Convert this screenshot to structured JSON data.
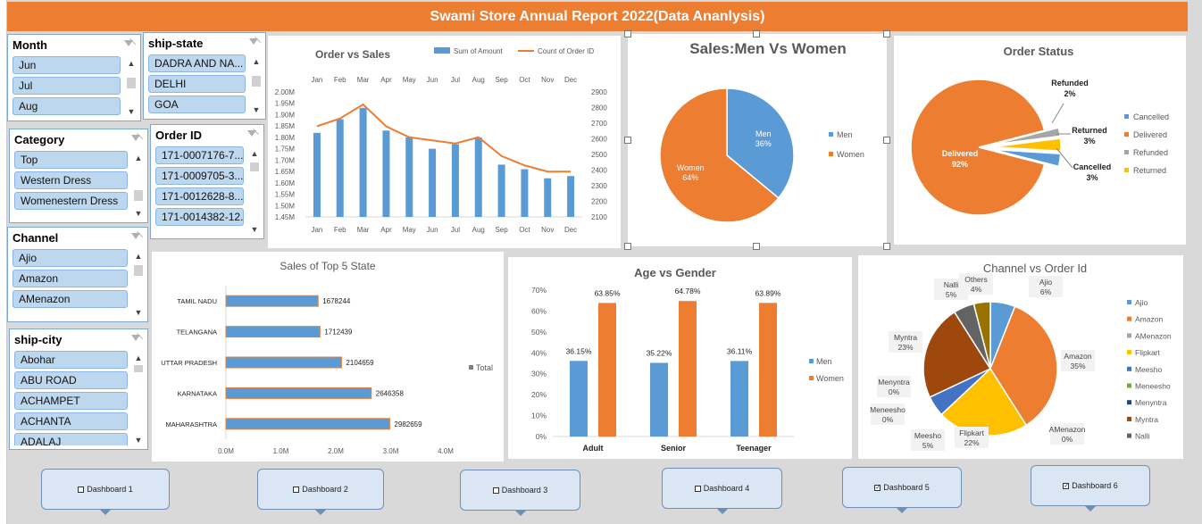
{
  "title": "Swami Store Annual Report 2022(Data Ananlysis)",
  "slicers": {
    "month": {
      "title": "Month",
      "items": [
        "Jun",
        "Jul",
        "Aug"
      ]
    },
    "ship_state": {
      "title": "ship-state",
      "items": [
        "DADRA AND NA...",
        "DELHI",
        "GOA"
      ]
    },
    "category": {
      "title": "Category",
      "items": [
        "Top",
        "Western Dress",
        "Womenestern Dress"
      ]
    },
    "order_id": {
      "title": "Order ID",
      "items": [
        "171-0007176-7...",
        "171-0009705-3...",
        "171-0012628-8...",
        "171-0014382-12..."
      ]
    },
    "channel": {
      "title": "Channel",
      "items": [
        "Ajio",
        "Amazon",
        "AMenazon"
      ]
    },
    "ship_city": {
      "title": "ship-city",
      "items": [
        "Abohar",
        "ABU ROAD",
        "ACHAMPET",
        "ACHANTA",
        "ADALAJ"
      ]
    }
  },
  "dashboards": [
    {
      "label": "Dashboard 1",
      "checked": false
    },
    {
      "label": "Dashboard  2",
      "checked": false
    },
    {
      "label": "Dashboard 3",
      "checked": false
    },
    {
      "label": "Dashboard 4",
      "checked": false
    },
    {
      "label": "Dashboard 5",
      "checked": true
    },
    {
      "label": "Dashboard 6",
      "checked": true
    }
  ],
  "colors": {
    "orange": "#ed7d31",
    "blue": "#5b9bd5",
    "gray": "#a5a5a5",
    "yellow": "#ffc000",
    "darkblue": "#4472c4",
    "green": "#70ad47",
    "navy": "#264478",
    "brown": "#9e480e",
    "dimgray": "#636363",
    "olive": "#997300"
  },
  "chart_data": [
    {
      "type": "bar",
      "title": "Order vs Sales",
      "categories": [
        "Jan",
        "Feb",
        "Mar",
        "Apr",
        "May",
        "Jun",
        "Jul",
        "Aug",
        "Sep",
        "Oct",
        "Nov",
        "Dec"
      ],
      "series": [
        {
          "name": "Sum of Amount",
          "type": "bar",
          "axis": "left",
          "values": [
            1.82,
            1.88,
            1.93,
            1.83,
            1.8,
            1.75,
            1.77,
            1.8,
            1.68,
            1.66,
            1.62,
            1.63
          ]
        },
        {
          "name": "Count of Order ID",
          "type": "line",
          "axis": "right",
          "values": [
            2680,
            2730,
            2820,
            2680,
            2610,
            2590,
            2570,
            2610,
            2490,
            2430,
            2390,
            2390
          ]
        }
      ],
      "y_left_ticks": [
        "2.00M",
        "1.95M",
        "1.90M",
        "1.85M",
        "1.80M",
        "1.75M",
        "1.70M",
        "1.65M",
        "1.60M",
        "1.55M",
        "1.50M",
        "1.45M"
      ],
      "y_right_ticks": [
        "2900",
        "2800",
        "2700",
        "2600",
        "2500",
        "2400",
        "2300",
        "2200",
        "2100"
      ],
      "ylim_left": [
        1.45,
        2.0
      ],
      "ylim_right": [
        2100,
        2900
      ]
    },
    {
      "type": "pie",
      "title": "Sales:Men Vs Women",
      "labels": [
        "Men",
        "Women"
      ],
      "values": [
        36,
        64
      ],
      "data_labels": [
        "36%",
        "64%"
      ],
      "legend": [
        "Men",
        "Women"
      ]
    },
    {
      "type": "pie",
      "title": "Order Status",
      "labels": [
        "Delivered",
        "Refunded",
        "Returned",
        "Cancelled"
      ],
      "values": [
        92,
        2,
        3,
        3
      ],
      "data_labels": [
        "92%",
        "2%",
        "3%",
        "3%"
      ],
      "legend": [
        "Cancelled",
        "Delivered",
        "Refunded",
        "Returned"
      ]
    },
    {
      "type": "bar",
      "orientation": "horizontal",
      "title": "Sales of Top 5 State",
      "categories": [
        "TAMIL NADU",
        "TELANGANA",
        "UTTAR PRADESH",
        "KARNATAKA",
        "MAHARASHTRA"
      ],
      "values": [
        1678244,
        1712439,
        2104659,
        2646358,
        2982659
      ],
      "series_name": "Total",
      "x_ticks": [
        "0.0M",
        "1.0M",
        "2.0M",
        "3.0M",
        "4.0M"
      ],
      "xlim": [
        0,
        4000000
      ]
    },
    {
      "type": "bar",
      "title": "Age vs Gender",
      "categories": [
        "Adult",
        "Senior",
        "Teenager"
      ],
      "series": [
        {
          "name": "Men",
          "values": [
            36.15,
            35.22,
            36.11
          ],
          "labels": [
            "36.15%",
            "35.22%",
            "36.11%"
          ]
        },
        {
          "name": "Women",
          "values": [
            63.85,
            64.78,
            63.89
          ],
          "labels": [
            "63.85%",
            "64.78%",
            "63.89%"
          ]
        }
      ],
      "y_ticks": [
        "70%",
        "60%",
        "50%",
        "40%",
        "30%",
        "20%",
        "10%",
        "0%"
      ],
      "ylim": [
        0,
        70
      ]
    },
    {
      "type": "pie",
      "title": "Channel vs Order Id",
      "labels": [
        "Ajio",
        "Amazon",
        "AMenazon",
        "Flipkart",
        "Meesho",
        "Meneesho",
        "Menyntra",
        "Myntra",
        "Nalli",
        "Others"
      ],
      "values": [
        6,
        35,
        0,
        22,
        5,
        0,
        0,
        23,
        5,
        4
      ],
      "data_labels": [
        "Ajio\n6%",
        "Amazon\n35%",
        "AMenazon\n0%",
        "Flipkart\n22%",
        "Meesho\n5%",
        "Meneesho\n0%",
        "Menyntra\n0%",
        "Myntra\n23%",
        "Nalli\n5%",
        "Others\n4%"
      ],
      "legend": [
        "Ajio",
        "Amazon",
        "AMenazon",
        "Flipkart",
        "Meesho",
        "Meneesho",
        "Menyntra",
        "Myntra",
        "Nalli"
      ]
    }
  ]
}
